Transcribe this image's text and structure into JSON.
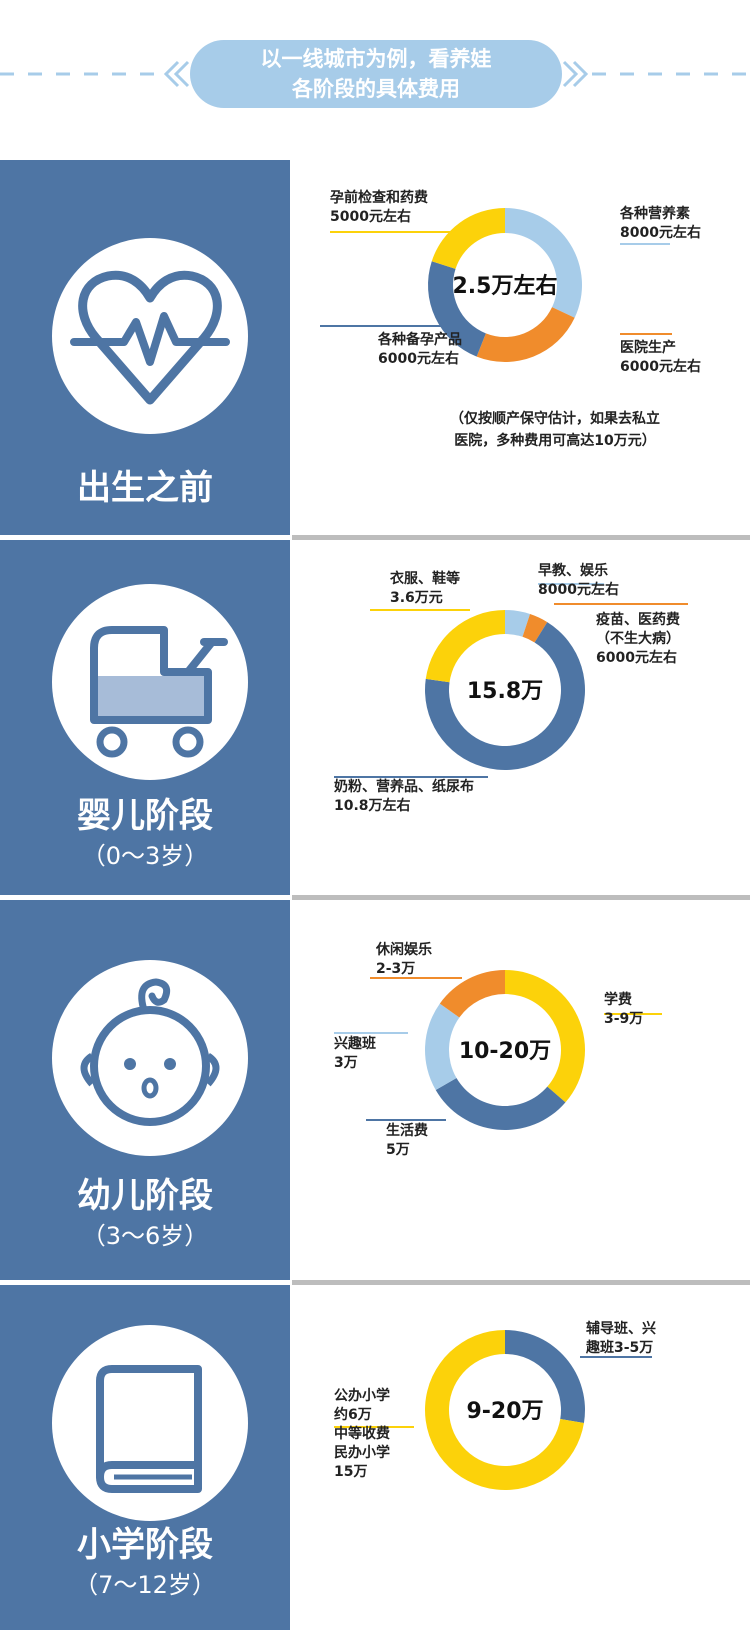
{
  "header": {
    "title_line1": "以一线城市为例，看养娃",
    "title_line2": "各阶段的具体费用"
  },
  "colors": {
    "panel": "#4e75a4",
    "yellow": "#fcd20a",
    "lightblue": "#a7cce9",
    "orange": "#f08c2c",
    "blue": "#4e75a4"
  },
  "sections": [
    {
      "stage": "出生之前",
      "subtitle": "",
      "icon": "heart-pulse-icon",
      "note": [
        "（仅按顺产保守估计，如果去私立",
        "医院，多种费用可高达10万元）"
      ]
    },
    {
      "stage": "婴儿阶段",
      "subtitle": "（0～3岁）",
      "icon": "baby-stroller-icon"
    },
    {
      "stage": "幼儿阶段",
      "subtitle": "（3～6岁）",
      "icon": "baby-face-icon"
    },
    {
      "stage": "小学阶段",
      "subtitle": "（7～12岁）",
      "icon": "book-icon"
    }
  ],
  "chart_data": [
    {
      "type": "pie",
      "center_label": "2.5万左右",
      "slices": [
        {
          "label": [
            "各种营养素",
            "8000元左右"
          ],
          "value": 8000,
          "color": "#a7cce9"
        },
        {
          "label": [
            "医院生产",
            "6000元左右"
          ],
          "value": 6000,
          "color": "#f08c2c"
        },
        {
          "label": [
            "各种备孕产品",
            "6000元左右"
          ],
          "value": 6000,
          "color": "#4e75a4"
        },
        {
          "label": [
            "孕前检查和药费",
            "5000元左右"
          ],
          "value": 5000,
          "color": "#fcd20a"
        }
      ]
    },
    {
      "type": "pie",
      "center_label": "15.8万",
      "slices": [
        {
          "label": [
            "早教、娱乐",
            "8000元左右"
          ],
          "value": 8000,
          "color": "#a7cce9"
        },
        {
          "label": [
            "疫苗、医药费",
            "（不生大病）",
            "6000元左右"
          ],
          "value": 6000,
          "color": "#f08c2c"
        },
        {
          "label": [
            "奶粉、营养品、纸尿布",
            "10.8万左右"
          ],
          "value": 108000,
          "color": "#4e75a4"
        },
        {
          "label": [
            "衣服、鞋等",
            "3.6万元"
          ],
          "value": 36000,
          "color": "#fcd20a"
        }
      ]
    },
    {
      "type": "pie",
      "center_label": "10-20万",
      "slices": [
        {
          "label": [
            "学费",
            "3-9万"
          ],
          "value": 6,
          "color": "#fcd20a"
        },
        {
          "label": [
            "生活费",
            "5万"
          ],
          "value": 5,
          "color": "#4e75a4"
        },
        {
          "label": [
            "兴趣班",
            "3万"
          ],
          "value": 3,
          "color": "#a7cce9"
        },
        {
          "label": [
            "休闲娱乐",
            "2-3万"
          ],
          "value": 2.5,
          "color": "#f08c2c"
        }
      ]
    },
    {
      "type": "pie",
      "center_label": "9-20万",
      "slices": [
        {
          "label": [
            "辅导班、兴",
            "趣班3-5万"
          ],
          "value": 4,
          "color": "#4e75a4"
        },
        {
          "label": [
            "公办小学",
            "约6万",
            "中等收费",
            "民办小学",
            "15万"
          ],
          "value": 10.5,
          "color": "#fcd20a"
        }
      ]
    }
  ]
}
